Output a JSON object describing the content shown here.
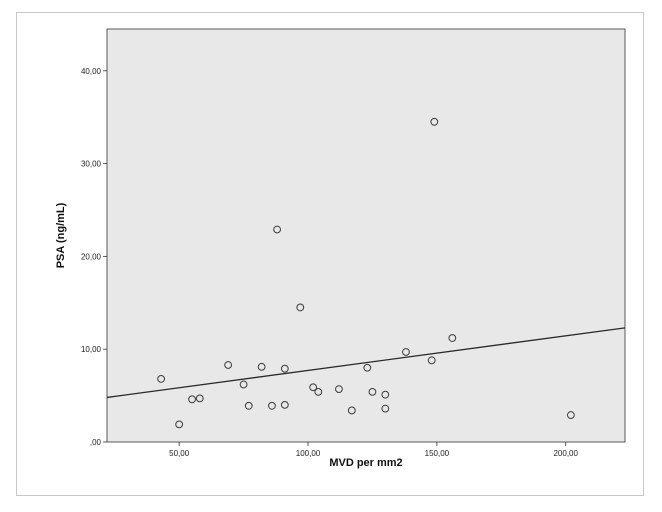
{
  "chart_data": {
    "type": "scatter",
    "xlabel": "MVD per mm2",
    "ylabel": "PSA (ng/mL)",
    "xlim": [
      22,
      223
    ],
    "ylim": [
      0,
      44.5
    ],
    "xticks": [
      50,
      100,
      150,
      200
    ],
    "xtick_labels": [
      "50,00",
      "100,00",
      "150,00",
      "200,00"
    ],
    "yticks": [
      0,
      10,
      20,
      30,
      40
    ],
    "ytick_labels": [
      ",00",
      "10,00",
      "20,00",
      "30,00",
      "40,00"
    ],
    "points": [
      {
        "x": 43,
        "y": 6.8
      },
      {
        "x": 50,
        "y": 1.9
      },
      {
        "x": 55,
        "y": 4.6
      },
      {
        "x": 58,
        "y": 4.7
      },
      {
        "x": 69,
        "y": 8.3
      },
      {
        "x": 75,
        "y": 6.2
      },
      {
        "x": 77,
        "y": 3.9
      },
      {
        "x": 82,
        "y": 8.1
      },
      {
        "x": 86,
        "y": 3.9
      },
      {
        "x": 88,
        "y": 22.9
      },
      {
        "x": 91,
        "y": 7.9
      },
      {
        "x": 91,
        "y": 4.0
      },
      {
        "x": 97,
        "y": 14.5
      },
      {
        "x": 102,
        "y": 5.9
      },
      {
        "x": 104,
        "y": 5.4
      },
      {
        "x": 112,
        "y": 5.7
      },
      {
        "x": 117,
        "y": 3.4
      },
      {
        "x": 123,
        "y": 8.0
      },
      {
        "x": 125,
        "y": 5.4
      },
      {
        "x": 130,
        "y": 5.1
      },
      {
        "x": 130,
        "y": 3.6
      },
      {
        "x": 138,
        "y": 9.7
      },
      {
        "x": 148,
        "y": 8.8
      },
      {
        "x": 149,
        "y": 34.5
      },
      {
        "x": 156,
        "y": 11.2
      },
      {
        "x": 202,
        "y": 2.9
      }
    ],
    "fit_line": {
      "x": [
        22,
        223
      ],
      "y": [
        4.8,
        12.3
      ]
    },
    "grid": false,
    "legend": false,
    "colors": {
      "plot_background": "#e8e8e8",
      "marker_stroke": "#3a3a3a",
      "fit_line": "#2a2a2a",
      "axis": "#333333"
    }
  }
}
